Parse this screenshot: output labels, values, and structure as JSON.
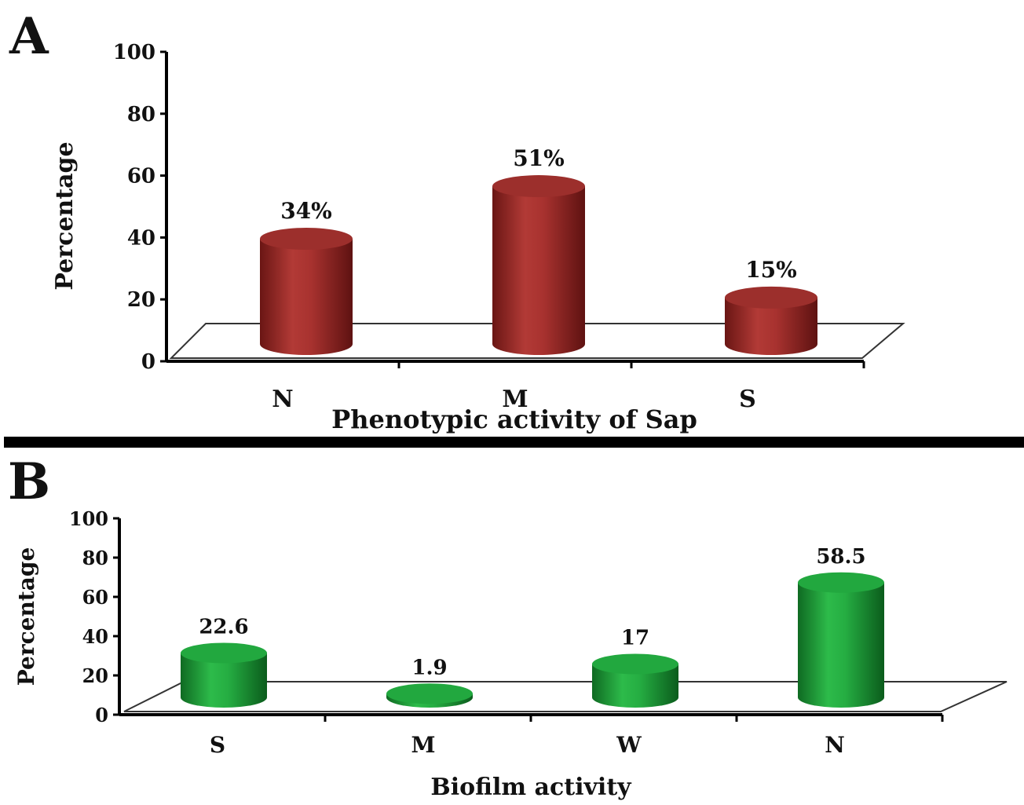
{
  "colors": {
    "panel_a_bar": "#8e2a28",
    "panel_b_bar": "#1f9e3a",
    "axis": "#000000",
    "divider": "#000000"
  },
  "chart_data": [
    {
      "panel": "A",
      "type": "bar",
      "style": "3d-cylinder",
      "xlabel": "Phenotypic activity of Sap",
      "ylabel": "Percentage",
      "ylim": [
        0,
        100
      ],
      "yticks": [
        0,
        20,
        40,
        60,
        80,
        100
      ],
      "categories": [
        "N",
        "M",
        "S"
      ],
      "values": [
        34,
        51,
        15
      ],
      "data_labels": [
        "34%",
        "51%",
        "15%"
      ],
      "grid": false,
      "legend": "none"
    },
    {
      "panel": "B",
      "type": "bar",
      "style": "3d-cylinder",
      "xlabel": "Biofilm activity",
      "ylabel": "Percentage",
      "ylim": [
        0,
        100
      ],
      "yticks": [
        0,
        20,
        40,
        60,
        80,
        100
      ],
      "categories": [
        "S",
        "M",
        "W",
        "N"
      ],
      "values": [
        22.6,
        1.9,
        17,
        58.5
      ],
      "data_labels": [
        "22.6",
        "1.9",
        "17",
        "58.5"
      ],
      "grid": false,
      "legend": "none"
    }
  ]
}
